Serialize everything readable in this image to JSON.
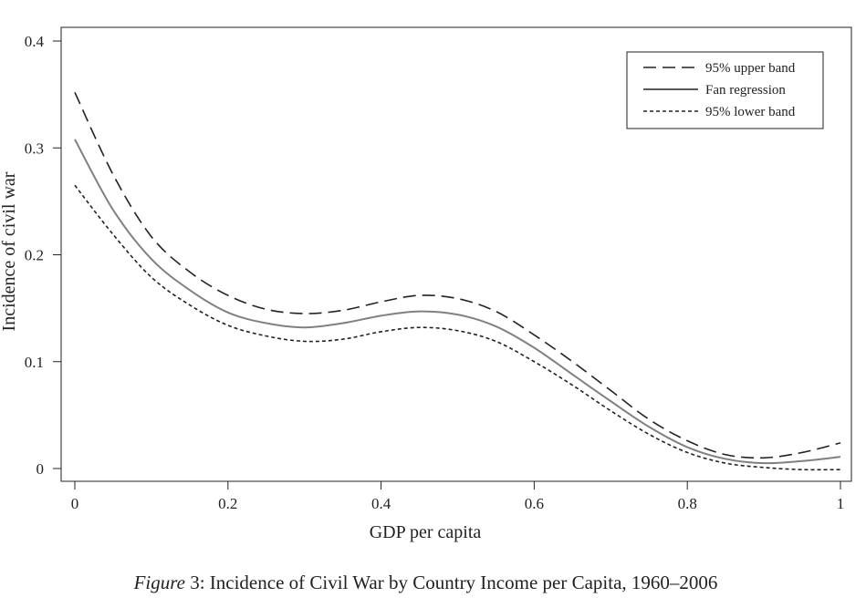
{
  "chart_data": {
    "type": "line",
    "xlabel": "GDP per capita",
    "ylabel": "Incidence of civil war",
    "xlim": [
      0,
      1
    ],
    "ylim": [
      0,
      0.4
    ],
    "xticks": [
      0,
      0.2,
      0.4,
      0.6,
      0.8,
      1
    ],
    "xtick_labels": [
      "0",
      "0.2",
      "0.4",
      "0.6",
      "0.8",
      "1"
    ],
    "yticks": [
      0,
      0.1,
      0.2,
      0.3,
      0.4
    ],
    "ytick_labels": [
      "0",
      "0.1",
      "0.2",
      "0.3",
      "0.4"
    ],
    "grid": false,
    "legend_position": "top-right",
    "series": [
      {
        "name": "95% upper band",
        "style": "dashed",
        "color": "#222222",
        "x": [
          0,
          0.05,
          0.1,
          0.15,
          0.2,
          0.25,
          0.3,
          0.35,
          0.4,
          0.45,
          0.5,
          0.55,
          0.6,
          0.65,
          0.7,
          0.75,
          0.8,
          0.85,
          0.9,
          0.95,
          1
        ],
        "y": [
          0.352,
          0.275,
          0.217,
          0.184,
          0.162,
          0.149,
          0.145,
          0.148,
          0.156,
          0.162,
          0.159,
          0.147,
          0.125,
          0.1,
          0.073,
          0.046,
          0.026,
          0.013,
          0.01,
          0.015,
          0.024
        ]
      },
      {
        "name": "Fan regression",
        "style": "solid",
        "color": "#808080",
        "x": [
          0,
          0.05,
          0.1,
          0.15,
          0.2,
          0.25,
          0.3,
          0.35,
          0.4,
          0.45,
          0.5,
          0.55,
          0.6,
          0.65,
          0.7,
          0.75,
          0.8,
          0.85,
          0.9,
          0.95,
          1
        ],
        "y": [
          0.308,
          0.242,
          0.196,
          0.167,
          0.146,
          0.136,
          0.132,
          0.136,
          0.143,
          0.147,
          0.144,
          0.133,
          0.113,
          0.088,
          0.063,
          0.039,
          0.02,
          0.009,
          0.005,
          0.007,
          0.011
        ]
      },
      {
        "name": "95% lower band",
        "style": "dotted",
        "color": "#222222",
        "x": [
          0,
          0.05,
          0.1,
          0.15,
          0.2,
          0.25,
          0.3,
          0.35,
          0.4,
          0.45,
          0.5,
          0.55,
          0.6,
          0.65,
          0.7,
          0.75,
          0.8,
          0.85,
          0.9,
          0.95,
          1
        ],
        "y": [
          0.265,
          0.219,
          0.179,
          0.153,
          0.134,
          0.124,
          0.119,
          0.121,
          0.128,
          0.132,
          0.129,
          0.119,
          0.1,
          0.078,
          0.054,
          0.032,
          0.015,
          0.005,
          0.001,
          -0.001,
          -0.001
        ]
      }
    ]
  },
  "caption": {
    "label": "Figure",
    "text": " 3: Incidence of Civil War by Country Income per Capita, 1960–2006"
  }
}
